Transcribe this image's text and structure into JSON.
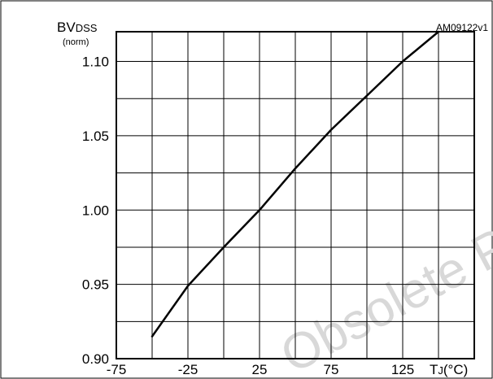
{
  "figure_ref": "AM09122v1",
  "watermark": "Obsolete Product(s)",
  "chart_data": {
    "type": "line",
    "title": "",
    "ylabel": {
      "main": "BV",
      "subscript": "DSS",
      "unit": "(norm)"
    },
    "xlabel": {
      "main": "T",
      "subscript": "J",
      "unit": "(°C)"
    },
    "xlim": [
      -75,
      175
    ],
    "ylim": [
      0.9,
      1.12
    ],
    "x_ticks": [
      -75,
      -25,
      25,
      75,
      125
    ],
    "x_tick_labels": [
      "-75",
      "-25",
      "25",
      "75",
      "125"
    ],
    "y_ticks": [
      0.9,
      0.95,
      1.0,
      1.05,
      1.1
    ],
    "y_tick_labels": [
      "0.90",
      "0.95",
      "1.00",
      "1.05",
      "1.10"
    ],
    "x_grid_step": 25,
    "y_grid_step": 0.025,
    "grid": true,
    "series": [
      {
        "color": "#000000",
        "x": [
          -50,
          -25,
          0,
          25,
          50,
          75,
          100,
          125,
          150
        ],
        "y": [
          0.915,
          0.949,
          0.975,
          1.0,
          1.028,
          1.054,
          1.077,
          1.1,
          1.12
        ]
      }
    ]
  }
}
